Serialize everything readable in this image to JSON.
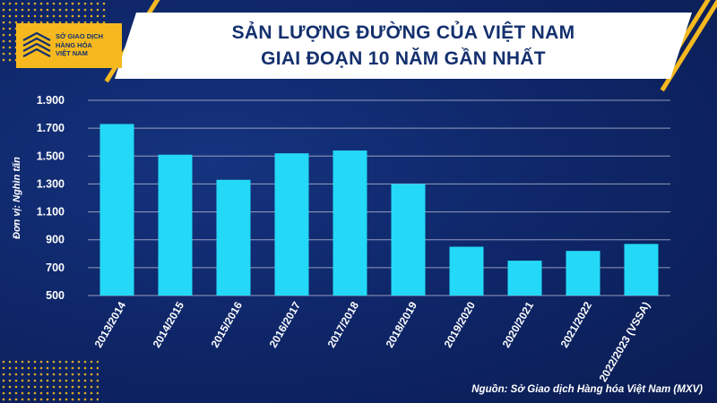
{
  "header": {
    "title_line1": "SẢN LƯỢNG ĐƯỜNG CỦA VIỆT NAM",
    "title_line2": "GIAI ĐOẠN 10 NĂM GẦN NHẤT"
  },
  "logo": {
    "line1": "SỞ GIAO DỊCH",
    "line2": "HÀNG HÓA",
    "line3": "VIỆT NAM"
  },
  "source": "Nguồn: Sở Giao dịch Hàng hóa Việt Nam (MXV)",
  "colors": {
    "bar": "#23d9f7",
    "accent": "#f5b91f",
    "title": "#14306e",
    "background": "#0e2566"
  },
  "chart_data": {
    "type": "bar",
    "title": "SẢN LƯỢNG ĐƯỜNG CỦA VIỆT NAM GIAI ĐOẠN 10 NĂM GẦN NHẤT",
    "xlabel": "",
    "ylabel": "Đơn vị: Nghìn tấn",
    "ylim": [
      500,
      1900
    ],
    "yticks": [
      500,
      700,
      900,
      1100,
      1300,
      1500,
      1700,
      1900
    ],
    "ytick_labels": [
      "500",
      "700",
      "900",
      "1.100",
      "1.300",
      "1.500",
      "1.700",
      "1.900"
    ],
    "grid": true,
    "categories": [
      "2013/2014",
      "2014/2015",
      "2015/2016",
      "2016/2017",
      "2017/2018",
      "2018/2019",
      "2019/2020",
      "2020/2021",
      "2021/2022",
      "2022/2023 (VSSA)"
    ],
    "values": [
      1730,
      1510,
      1330,
      1520,
      1540,
      1300,
      850,
      750,
      820,
      870
    ]
  }
}
